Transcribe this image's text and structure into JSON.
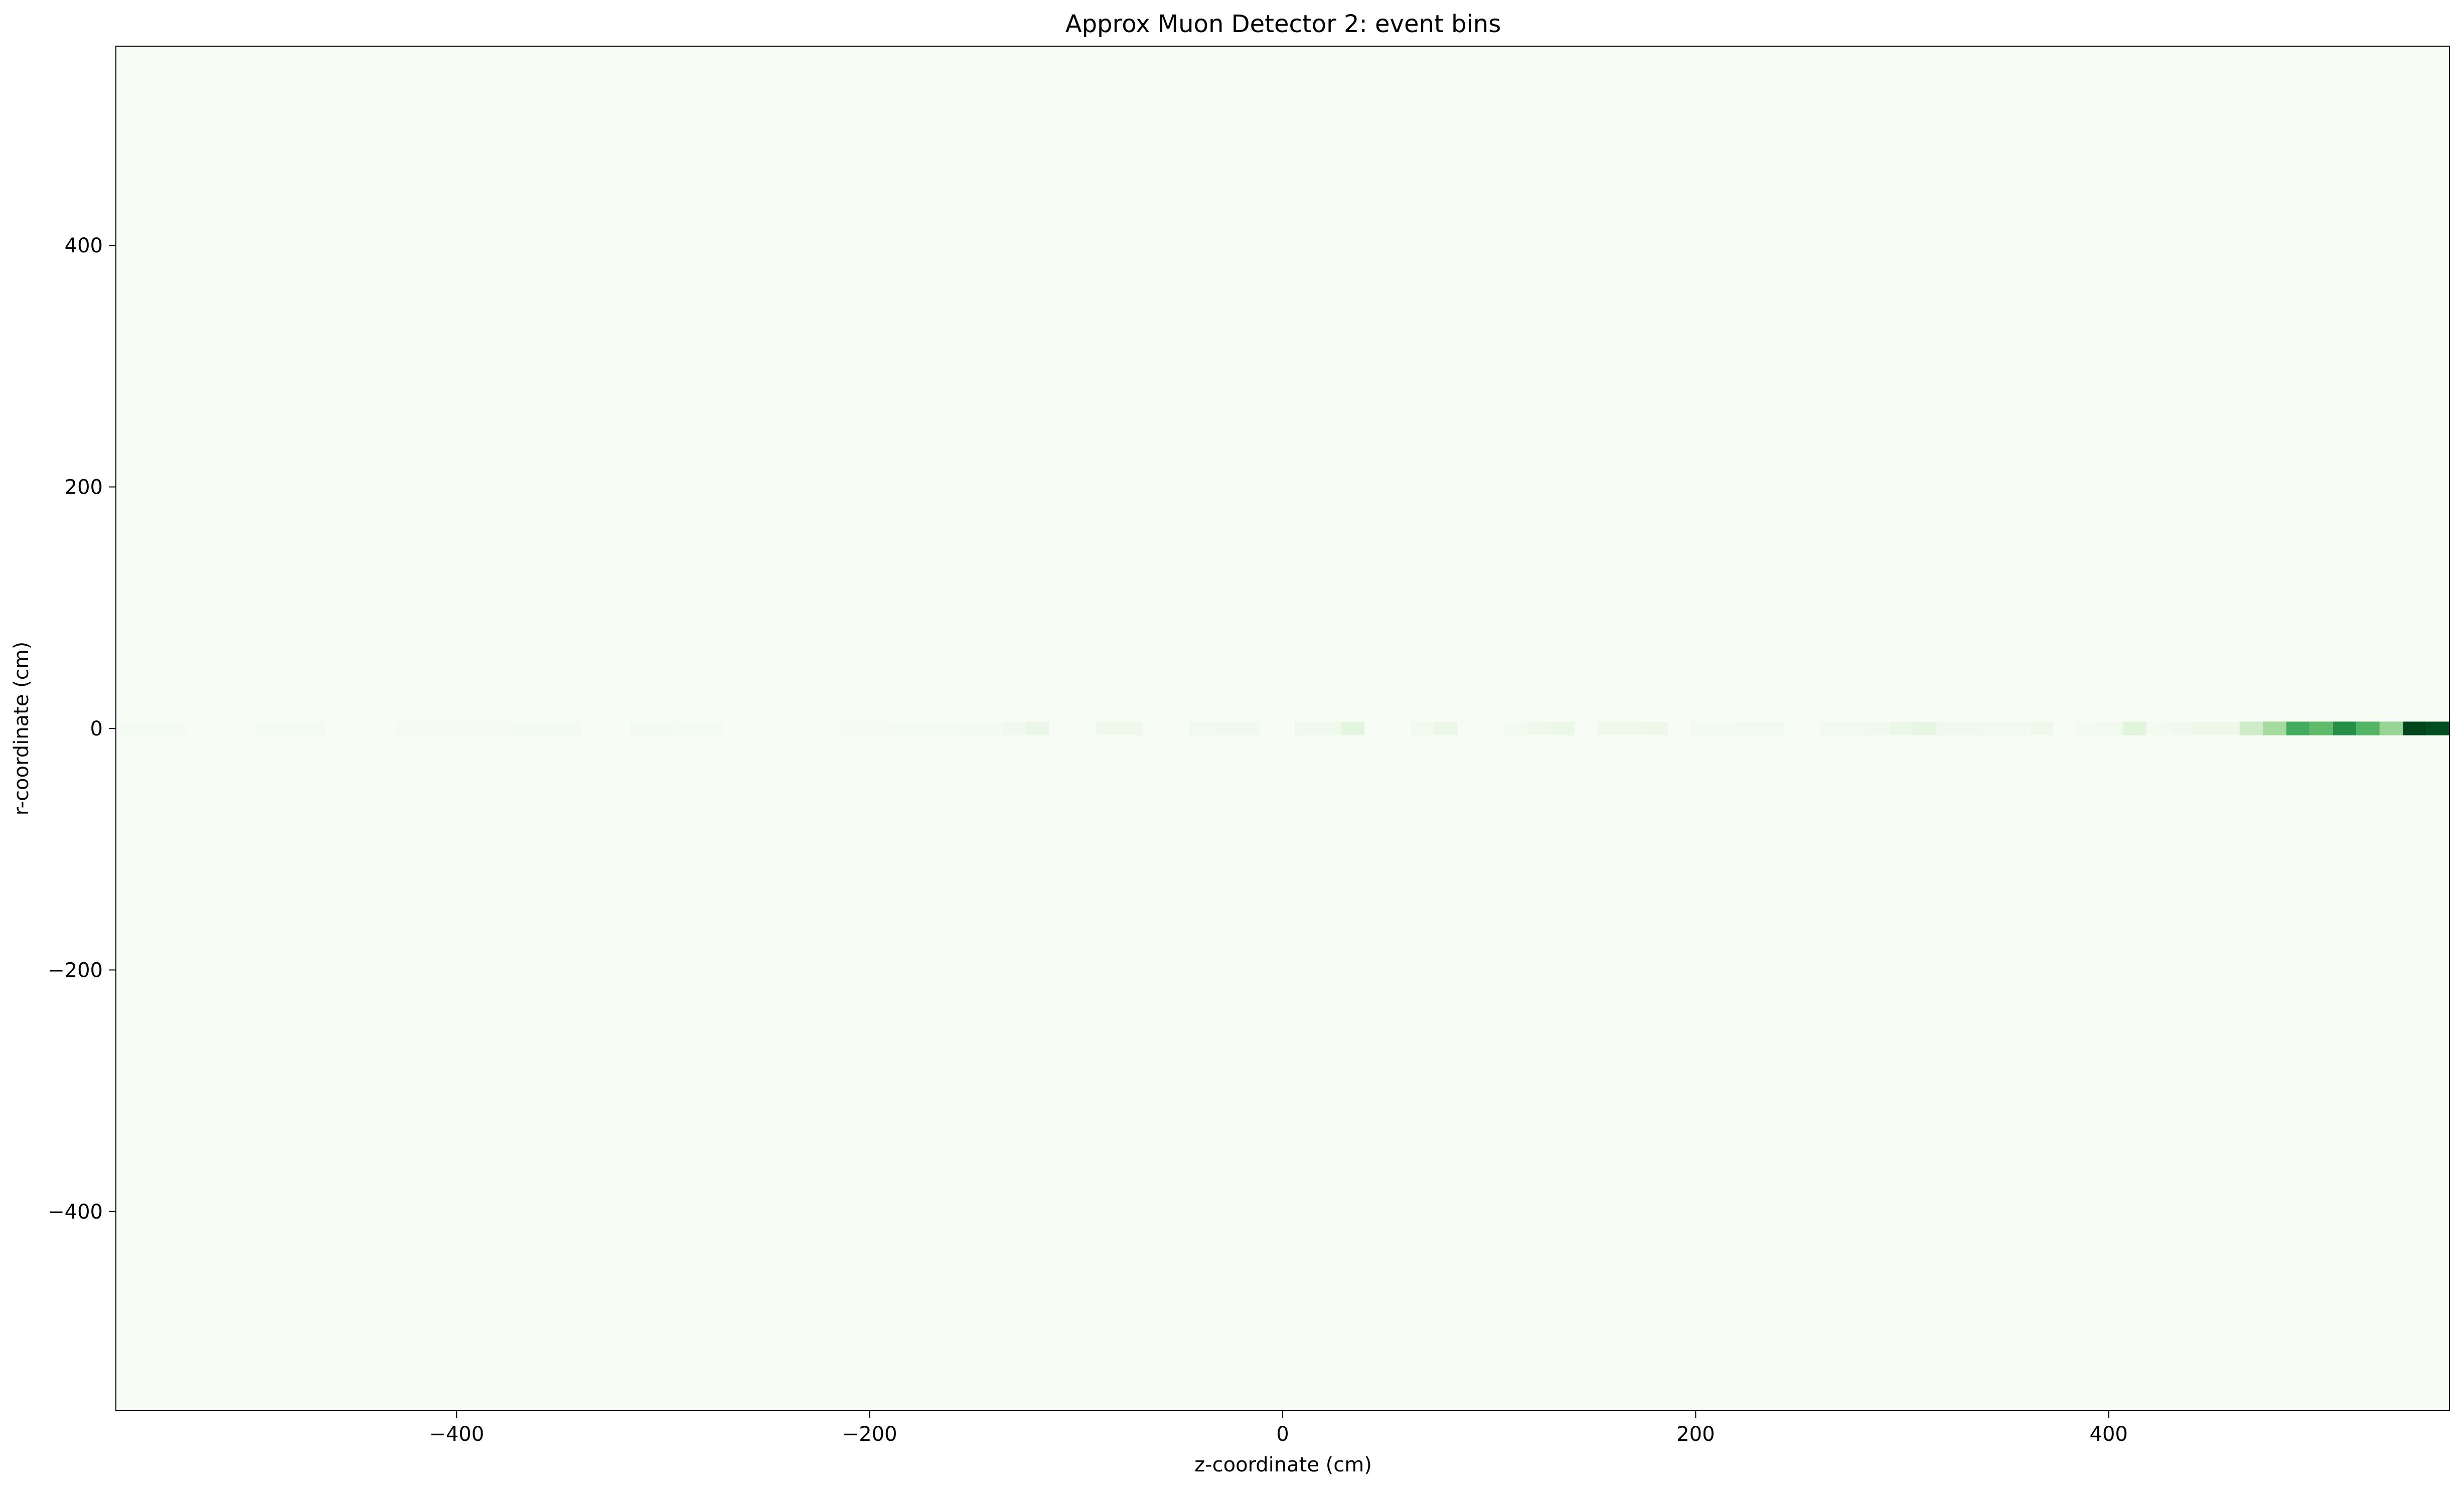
{
  "chart_data": {
    "type": "heatmap",
    "title": "Approx Muon Detector 2: event bins",
    "xlabel": "z-coordinate (cm)",
    "ylabel": "r-coordinate (cm)",
    "xlim": [
      -565,
      565
    ],
    "ylim": [
      -565,
      565
    ],
    "xticks": [
      {
        "value": -400,
        "label": "−400"
      },
      {
        "value": -200,
        "label": "−200"
      },
      {
        "value": 0,
        "label": "0"
      },
      {
        "value": 200,
        "label": "200"
      },
      {
        "value": 400,
        "label": "400"
      }
    ],
    "yticks": [
      {
        "value": 400,
        "label": "400"
      },
      {
        "value": 200,
        "label": "200"
      },
      {
        "value": 0,
        "label": "0"
      },
      {
        "value": -200,
        "label": "−200"
      },
      {
        "value": -400,
        "label": "−400"
      }
    ],
    "grid": false,
    "colormap": "Greens",
    "background_color": "#f7fcf5",
    "row": {
      "r_min": -5.65,
      "r_max": 5.65
    },
    "bin_width": 11.3,
    "bins": [
      {
        "z_start": -565.0,
        "z_end": -531.1,
        "intensity": 0.02
      },
      {
        "z_start": -497.2,
        "z_end": -463.3,
        "intensity": 0.02
      },
      {
        "z_start": -429.4,
        "z_end": -372.9,
        "intensity": 0.015
      },
      {
        "z_start": -372.9,
        "z_end": -338.9,
        "intensity": 0.025
      },
      {
        "z_start": -316.3,
        "z_end": -293.7,
        "intensity": 0.03
      },
      {
        "z_start": -293.7,
        "z_end": -271.1,
        "intensity": 0.02
      },
      {
        "z_start": -214.6,
        "z_end": -192.0,
        "intensity": 0.015
      },
      {
        "z_start": -192.0,
        "z_end": -158.1,
        "intensity": 0.02
      },
      {
        "z_start": -158.1,
        "z_end": -135.6,
        "intensity": 0.03
      },
      {
        "z_start": -135.6,
        "z_end": -124.3,
        "intensity": 0.05
      },
      {
        "z_start": -124.3,
        "z_end": -113.0,
        "intensity": 0.09
      },
      {
        "z_start": -90.4,
        "z_end": -67.8,
        "intensity": 0.06
      },
      {
        "z_start": -45.2,
        "z_end": -33.9,
        "intensity": 0.04
      },
      {
        "z_start": -33.9,
        "z_end": -11.3,
        "intensity": 0.05
      },
      {
        "z_start": 5.7,
        "z_end": 28.3,
        "intensity": 0.05
      },
      {
        "z_start": 28.3,
        "z_end": 39.6,
        "intensity": 0.13
      },
      {
        "z_start": 62.2,
        "z_end": 73.5,
        "intensity": 0.04
      },
      {
        "z_start": 73.5,
        "z_end": 84.8,
        "intensity": 0.08
      },
      {
        "z_start": 107.4,
        "z_end": 118.7,
        "intensity": 0.03
      },
      {
        "z_start": 118.7,
        "z_end": 130.0,
        "intensity": 0.06
      },
      {
        "z_start": 130.0,
        "z_end": 141.3,
        "intensity": 0.08
      },
      {
        "z_start": 152.6,
        "z_end": 175.2,
        "intensity": 0.06
      },
      {
        "z_start": 175.2,
        "z_end": 186.5,
        "intensity": 0.07
      },
      {
        "z_start": 197.8,
        "z_end": 220.4,
        "intensity": 0.03
      },
      {
        "z_start": 220.4,
        "z_end": 243.0,
        "intensity": 0.04
      },
      {
        "z_start": 260.0,
        "z_end": 282.6,
        "intensity": 0.04
      },
      {
        "z_start": 282.6,
        "z_end": 293.9,
        "intensity": 0.05
      },
      {
        "z_start": 293.9,
        "z_end": 305.2,
        "intensity": 0.08
      },
      {
        "z_start": 305.2,
        "z_end": 316.5,
        "intensity": 0.11
      },
      {
        "z_start": 316.5,
        "z_end": 339.1,
        "intensity": 0.05
      },
      {
        "z_start": 339.1,
        "z_end": 361.7,
        "intensity": 0.04
      },
      {
        "z_start": 361.7,
        "z_end": 373.0,
        "intensity": 0.06
      },
      {
        "z_start": 384.3,
        "z_end": 395.6,
        "intensity": 0.03
      },
      {
        "z_start": 395.6,
        "z_end": 406.9,
        "intensity": 0.04
      },
      {
        "z_start": 406.9,
        "z_end": 418.2,
        "intensity": 0.14
      },
      {
        "z_start": 418.2,
        "z_end": 429.5,
        "intensity": 0.03
      },
      {
        "z_start": 429.5,
        "z_end": 440.8,
        "intensity": 0.05
      },
      {
        "z_start": 440.8,
        "z_end": 463.4,
        "intensity": 0.07
      },
      {
        "z_start": 463.4,
        "z_end": 474.7,
        "intensity": 0.22
      },
      {
        "z_start": 474.7,
        "z_end": 486.0,
        "intensity": 0.36
      },
      {
        "z_start": 486.0,
        "z_end": 497.3,
        "intensity": 0.62
      },
      {
        "z_start": 497.3,
        "z_end": 508.6,
        "intensity": 0.55
      },
      {
        "z_start": 508.6,
        "z_end": 519.9,
        "intensity": 0.74
      },
      {
        "z_start": 519.9,
        "z_end": 531.2,
        "intensity": 0.58
      },
      {
        "z_start": 531.2,
        "z_end": 542.5,
        "intensity": 0.4
      },
      {
        "z_start": 542.5,
        "z_end": 553.8,
        "intensity": 1.0
      },
      {
        "z_start": 553.8,
        "z_end": 565.0,
        "intensity": 0.97
      }
    ]
  }
}
